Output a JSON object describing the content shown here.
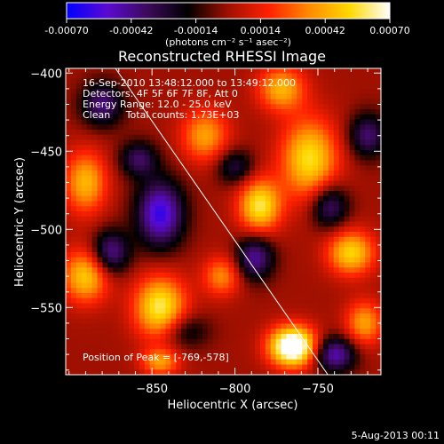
{
  "chart_data": {
    "type": "heatmap",
    "title": "Reconstructed RHESSI Image",
    "xlabel": "Heliocentric X (arcsec)",
    "ylabel": "Heliocentric Y (arcsec)",
    "xlim": [
      -902,
      -712
    ],
    "ylim": [
      -593,
      -397
    ],
    "x_ticks": [
      -850,
      -800,
      -750
    ],
    "y_ticks": [
      -400,
      -450,
      -500,
      -550
    ],
    "colorbar": {
      "label": "(photons cm⁻² s⁻¹ asec⁻²)",
      "range": [
        -0.0007,
        0.0007
      ],
      "ticks": [
        "-0.00070",
        "-0.00042",
        "-0.00014",
        "0.00014",
        "0.00042",
        "0.00070"
      ],
      "colormap": [
        "#0000ff",
        "#5a0ad2",
        "#3c0a5a",
        "#000000",
        "#a01000",
        "#ff2000",
        "#ff8a00",
        "#ffd800",
        "#ffffff"
      ]
    },
    "annotations": [
      "16-Sep-2010 13:48:12.000 to 13:49:12.000",
      "Detectors: 4F 5F 6F 7F 8F, Att 0",
      "Energy Range: 12.0 - 25.0 keV",
      "Clean     Total counts: 1.73E+03"
    ],
    "peak_label": "Position of Peak = [-769,-578]",
    "peak": [
      -769,
      -578
    ],
    "limb_line": [
      [
        -872,
        -397
      ],
      [
        -744,
        -593
      ]
    ],
    "sources": [
      {
        "x": -765,
        "y": -575,
        "value": 0.0009,
        "sx": 10,
        "sy": 9
      },
      {
        "x": -755,
        "y": -455,
        "value": 0.00055,
        "sx": 12,
        "sy": 18
      },
      {
        "x": -785,
        "y": -485,
        "value": 0.00058,
        "sx": 9,
        "sy": 12
      },
      {
        "x": -845,
        "y": -550,
        "value": 0.0006,
        "sx": 11,
        "sy": 14
      },
      {
        "x": -890,
        "y": -530,
        "value": 0.0005,
        "sx": 10,
        "sy": 12
      },
      {
        "x": -890,
        "y": -470,
        "value": 0.00045,
        "sx": 9,
        "sy": 14
      },
      {
        "x": -730,
        "y": -515,
        "value": 0.00052,
        "sx": 10,
        "sy": 10
      },
      {
        "x": -722,
        "y": -560,
        "value": 0.0004,
        "sx": 8,
        "sy": 10
      },
      {
        "x": -818,
        "y": -440,
        "value": 0.0004,
        "sx": 10,
        "sy": 12
      },
      {
        "x": -772,
        "y": -410,
        "value": 0.00044,
        "sx": 10,
        "sy": 10
      },
      {
        "x": -845,
        "y": -585,
        "value": 0.00038,
        "sx": 8,
        "sy": 6
      },
      {
        "x": -808,
        "y": -530,
        "value": 0.00035,
        "sx": 8,
        "sy": 9
      },
      {
        "x": -845,
        "y": -490,
        "value": -0.0006,
        "sx": 10,
        "sy": 15
      },
      {
        "x": -788,
        "y": -518,
        "value": -0.00045,
        "sx": 8,
        "sy": 10
      },
      {
        "x": -743,
        "y": -485,
        "value": -0.0004,
        "sx": 8,
        "sy": 10
      },
      {
        "x": -740,
        "y": -580,
        "value": -0.0005,
        "sx": 9,
        "sy": 8
      },
      {
        "x": -875,
        "y": -515,
        "value": -0.00045,
        "sx": 8,
        "sy": 10
      },
      {
        "x": -880,
        "y": -420,
        "value": -0.0004,
        "sx": 9,
        "sy": 10
      },
      {
        "x": -720,
        "y": -440,
        "value": -0.00038,
        "sx": 8,
        "sy": 10
      },
      {
        "x": -800,
        "y": -460,
        "value": -0.0003,
        "sx": 8,
        "sy": 8
      },
      {
        "x": -858,
        "y": -455,
        "value": -0.00035,
        "sx": 8,
        "sy": 8
      },
      {
        "x": -830,
        "y": -565,
        "value": -0.00025,
        "sx": 10,
        "sy": 8
      }
    ]
  },
  "footer": {
    "date": "5-Aug-2013 00:11"
  }
}
